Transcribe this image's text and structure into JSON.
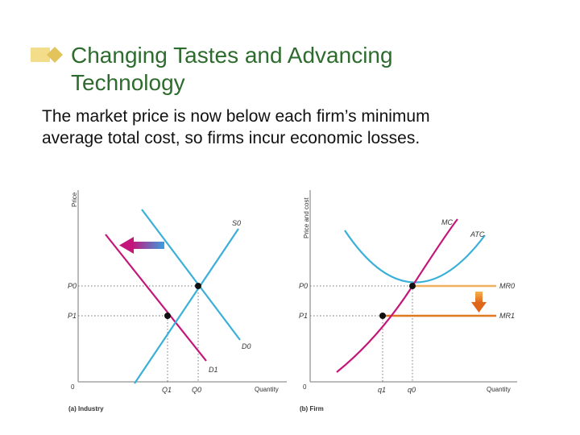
{
  "slide": {
    "title_lines": [
      "Changing Tastes and Advancing",
      "Technology"
    ],
    "body_lines": [
      "The market price is now below each firm’s minimum",
      "average total cost, so firms incur economic losses."
    ]
  },
  "colors": {
    "title": "#2e6b2e",
    "demand": "#c4167a",
    "supply": "#3ab0d8",
    "mr": "#f0b060",
    "mr_new": "#e07820",
    "arrow_blue": "#4a90d0",
    "arrow_magenta": "#c4167a"
  },
  "industry": {
    "caption": "(a) Industry",
    "y_axis_label": "Price",
    "x_axis_label": "Quantity",
    "origin": "0",
    "p0": "P0",
    "p1": "P1",
    "q0": "Q0",
    "q1": "Q1",
    "s0": "S0",
    "d0": "D0",
    "d1": "D1"
  },
  "firm": {
    "caption": "(b) Firm",
    "y_axis_label": "Price and cost",
    "x_axis_label": "Quantity",
    "origin": "0",
    "p0": "P0",
    "p1": "P1",
    "q0": "q0",
    "q1": "q1",
    "mc": "MC",
    "atc": "ATC",
    "mr0": "MR0",
    "mr1": "MR1"
  }
}
